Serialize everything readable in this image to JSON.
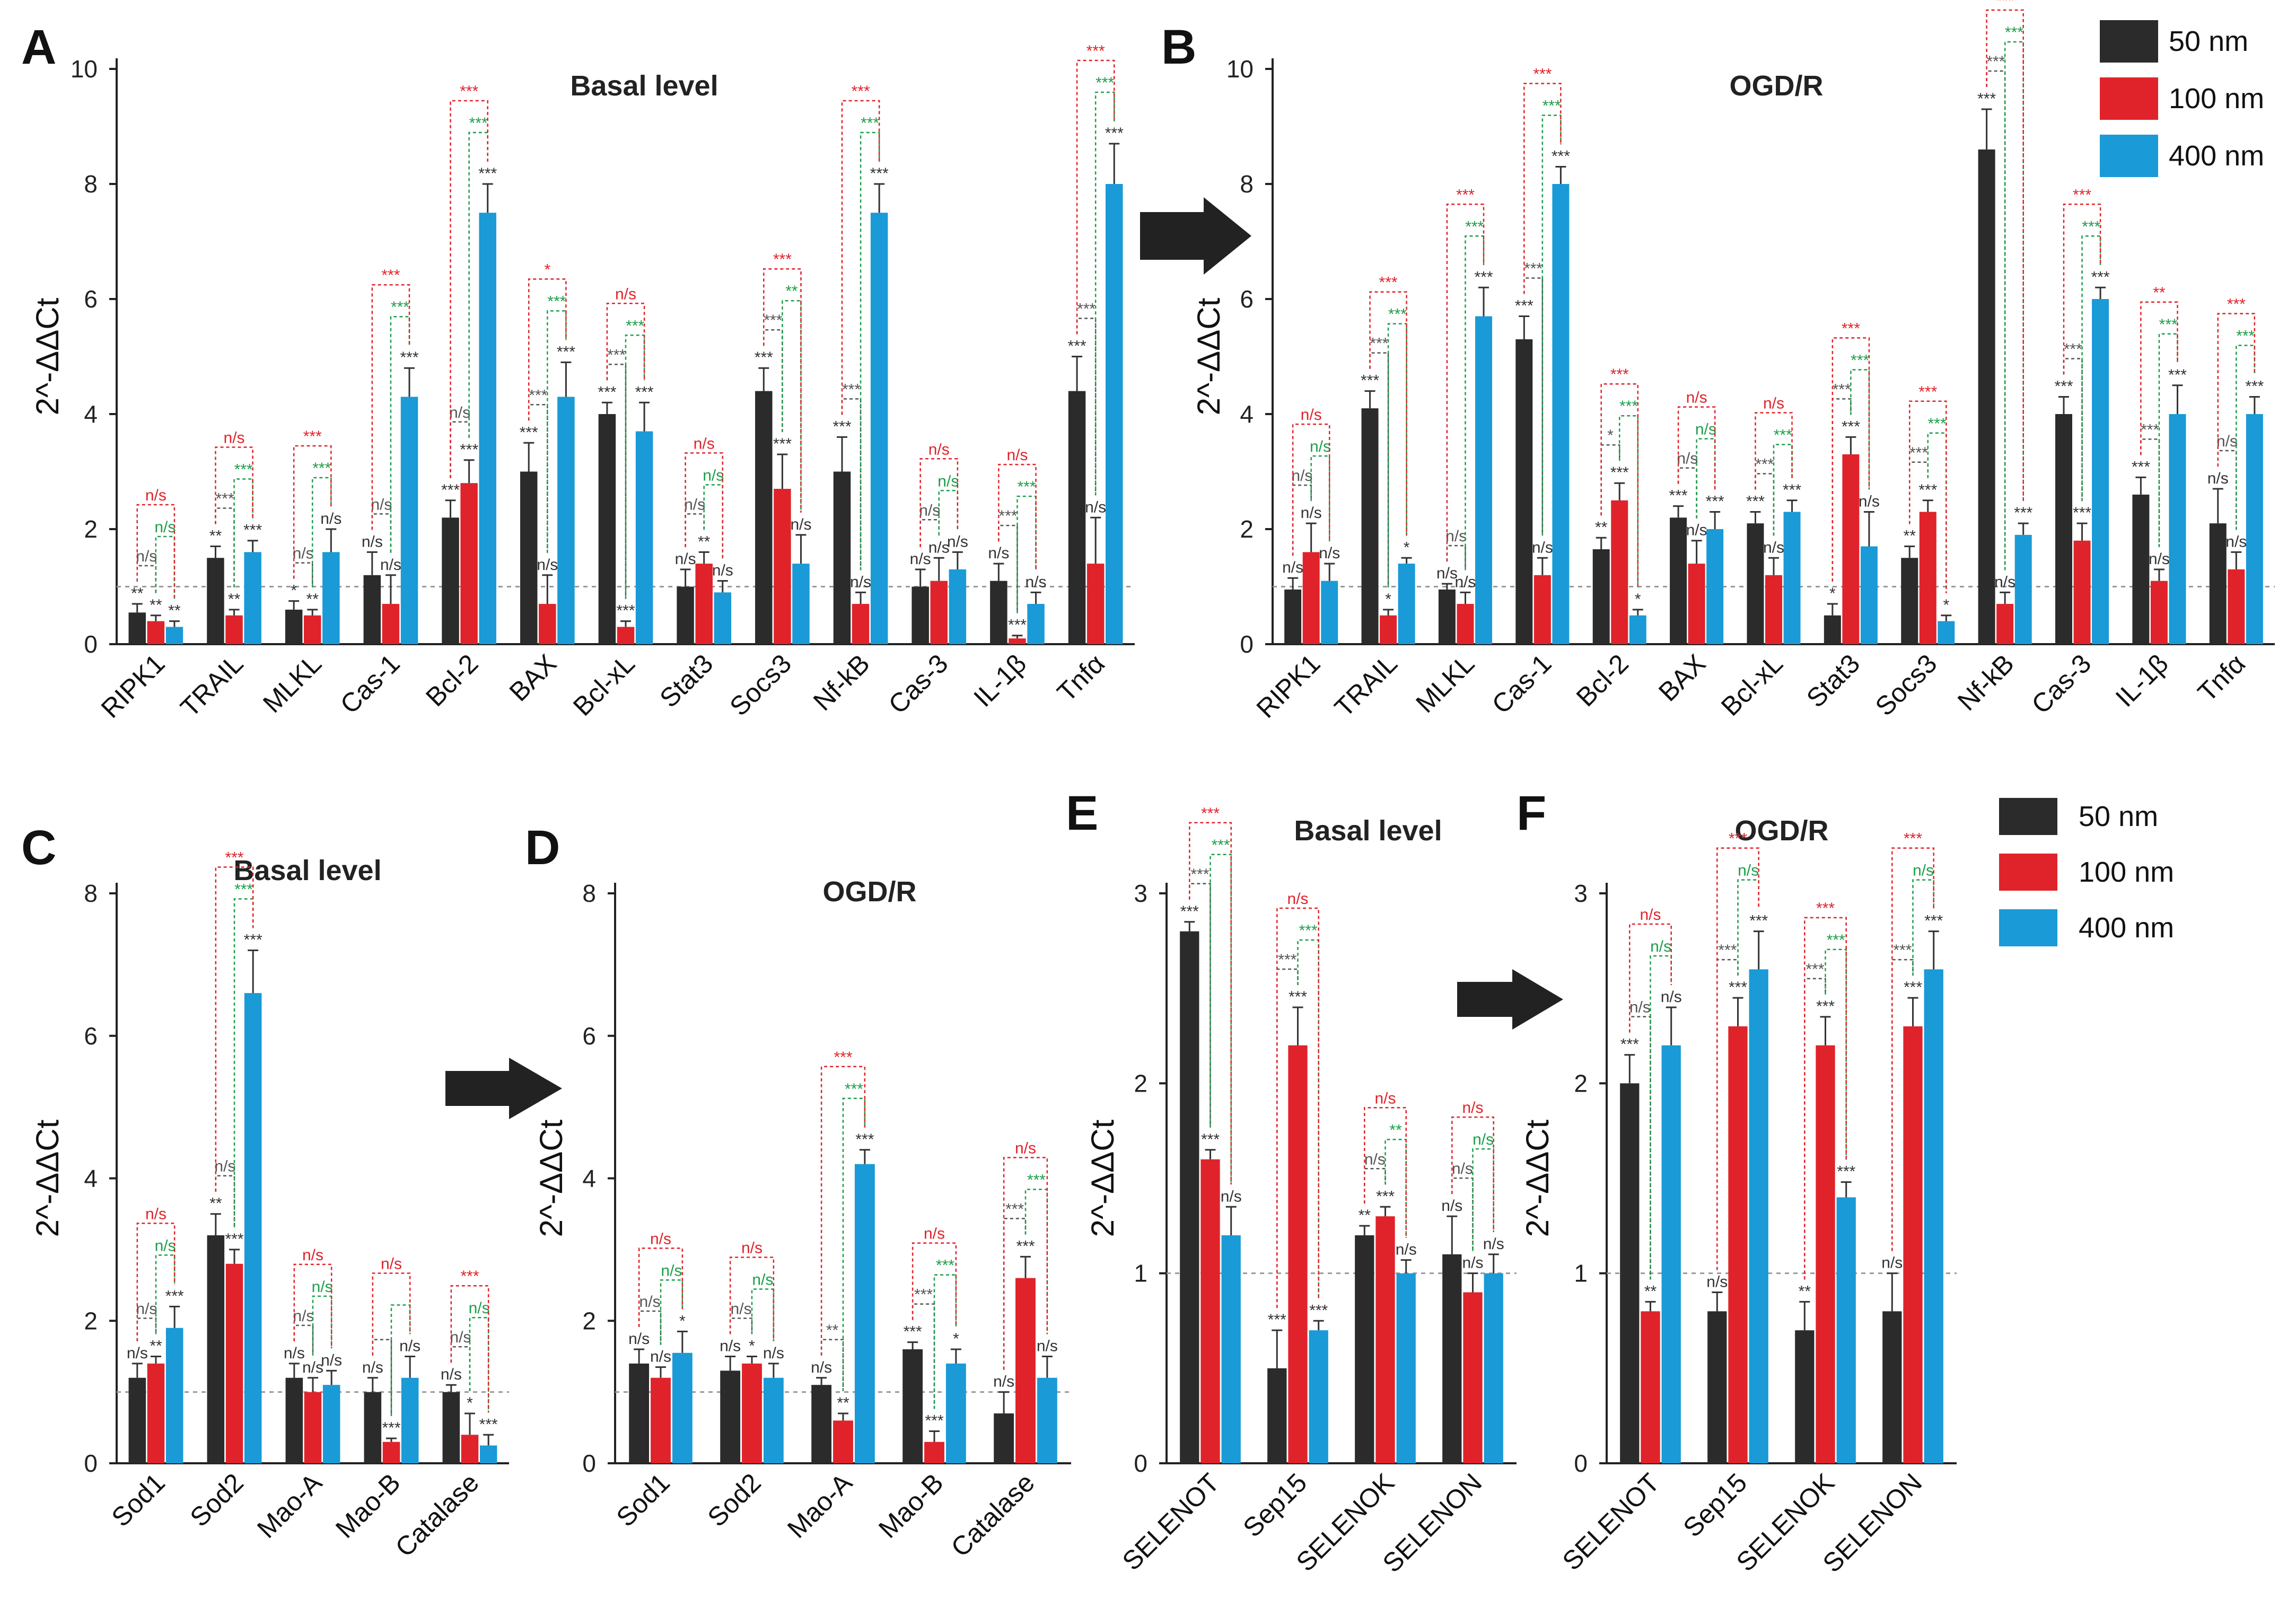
{
  "figure": {
    "y_label": "2^-ΔΔCt",
    "legend": [
      {
        "label": "50 nm",
        "color": "#2b2b2b"
      },
      {
        "label": "100 nm",
        "color": "#e0232a"
      },
      {
        "label": "400 nm",
        "color": "#1a9ad6"
      }
    ],
    "bracket_colors": {
      "k": "#555555",
      "r": "#e0232a",
      "g": "#1e9e4a"
    }
  },
  "chart_data": [
    {
      "panel": "A",
      "type": "bar",
      "title": "Basal level",
      "ylim": [
        0,
        10
      ],
      "yticks": [
        0,
        2,
        4,
        6,
        8,
        10
      ],
      "reference_line": 1,
      "categories": [
        "RIPK1",
        "TRAIL",
        "MLKL",
        "Cas-1",
        "Bcl-2",
        "BAX",
        "Bcl-xL",
        "Stat3",
        "Socs3",
        "Nf-kB",
        "Cas-3",
        "IL-1β",
        "Tnfα"
      ],
      "series": [
        {
          "name": "50 nm",
          "values": [
            0.55,
            1.5,
            0.6,
            1.2,
            2.2,
            3.0,
            4.0,
            1.0,
            4.4,
            3.0,
            1.0,
            1.1,
            4.4
          ]
        },
        {
          "name": "100 nm",
          "values": [
            0.4,
            0.5,
            0.5,
            0.7,
            2.8,
            0.7,
            0.3,
            1.4,
            2.7,
            0.7,
            1.1,
            0.1,
            1.4
          ]
        },
        {
          "name": "400 nm",
          "values": [
            0.3,
            1.6,
            1.6,
            4.3,
            7.5,
            4.3,
            3.7,
            0.9,
            1.4,
            7.5,
            1.3,
            0.7,
            8.0
          ]
        }
      ],
      "errors": [
        [
          0.15,
          0.2,
          0.15,
          0.4,
          0.3,
          0.5,
          0.2,
          0.3,
          0.4,
          0.6,
          0.3,
          0.3,
          0.6
        ],
        [
          0.1,
          0.1,
          0.1,
          0.5,
          0.4,
          0.5,
          0.1,
          0.2,
          0.6,
          0.2,
          0.4,
          0.05,
          0.8
        ],
        [
          0.1,
          0.2,
          0.4,
          0.5,
          0.5,
          0.6,
          0.5,
          0.2,
          0.5,
          0.5,
          0.3,
          0.2,
          0.7
        ]
      ],
      "bar_labels": [
        [
          "**",
          "**",
          "*",
          "n/s",
          "***",
          "***",
          "***",
          "n/s",
          "***",
          "***",
          "n/s",
          "n/s",
          "***"
        ],
        [
          "**",
          "**",
          "**",
          "n/s",
          "***",
          "n/s",
          "***",
          "**",
          "***",
          "n/s",
          "n/s",
          "***",
          "n/s"
        ],
        [
          "**",
          "***",
          "n/s",
          "***",
          "***",
          "***",
          "***",
          "n/s",
          "n/s",
          "***",
          "n/s",
          "n/s",
          "***"
        ]
      ],
      "brackets": {
        "k": [
          "n/s",
          "***",
          "n/s",
          "n/s",
          "n/s",
          "***",
          "***",
          "n/s",
          "***",
          "***",
          "n/s",
          "***",
          "***"
        ],
        "g": [
          "n/s",
          "***",
          "***",
          "***",
          "***",
          "***",
          "***",
          "n/s",
          "**",
          "***",
          "n/s",
          "***",
          "***"
        ],
        "r": [
          "n/s",
          "n/s",
          "***",
          "***",
          "***",
          "*",
          "n/s",
          "n/s",
          "***",
          "***",
          "n/s",
          "n/s",
          "***"
        ]
      }
    },
    {
      "panel": "B",
      "type": "bar",
      "title": "OGD/R",
      "ylim": [
        0,
        10
      ],
      "yticks": [
        0,
        2,
        4,
        6,
        8,
        10
      ],
      "reference_line": 1,
      "categories": [
        "RIPK1",
        "TRAIL",
        "MLKL",
        "Cas-1",
        "Bcl-2",
        "BAX",
        "Bcl-xL",
        "Stat3",
        "Socs3",
        "Nf-kB",
        "Cas-3",
        "IL-1β",
        "Tnfα"
      ],
      "series": [
        {
          "name": "50 nm",
          "values": [
            0.95,
            4.1,
            0.95,
            5.3,
            1.65,
            2.2,
            2.1,
            0.5,
            1.5,
            8.6,
            4.0,
            2.6,
            2.1
          ]
        },
        {
          "name": "100 nm",
          "values": [
            1.6,
            0.5,
            0.7,
            1.2,
            2.5,
            1.4,
            1.2,
            3.3,
            2.3,
            0.7,
            1.8,
            1.1,
            1.3
          ]
        },
        {
          "name": "400 nm",
          "values": [
            1.1,
            1.4,
            5.7,
            8.0,
            0.5,
            2.0,
            2.3,
            1.7,
            0.4,
            1.9,
            6.0,
            4.0,
            4.0
          ]
        }
      ],
      "errors": [
        [
          0.2,
          0.3,
          0.1,
          0.4,
          0.2,
          0.2,
          0.2,
          0.2,
          0.2,
          0.7,
          0.3,
          0.3,
          0.6
        ],
        [
          0.5,
          0.1,
          0.2,
          0.3,
          0.3,
          0.4,
          0.3,
          0.3,
          0.2,
          0.2,
          0.3,
          0.2,
          0.3
        ],
        [
          0.3,
          0.1,
          0.5,
          0.3,
          0.1,
          0.3,
          0.2,
          0.6,
          0.1,
          0.2,
          0.2,
          0.5,
          0.3
        ]
      ],
      "bar_labels": [
        [
          "n/s",
          "***",
          "n/s",
          "***",
          "**",
          "***",
          "***",
          "*",
          "**",
          "***",
          "***",
          "***",
          "n/s"
        ],
        [
          "n/s",
          "*",
          "n/s",
          "n/s",
          "***",
          "n/s",
          "n/s",
          "***",
          "***",
          "n/s",
          "***",
          "n/s",
          "n/s"
        ],
        [
          "n/s",
          "*",
          "***",
          "***",
          "*",
          "***",
          "***",
          "n/s",
          "*",
          "***",
          "***",
          "***",
          "***"
        ]
      ],
      "brackets": {
        "k": [
          "n/s",
          "***",
          "n/s",
          "***",
          "*",
          "n/s",
          "***",
          "***",
          "***",
          "***",
          "***",
          "***",
          "n/s"
        ],
        "g": [
          "n/s",
          "***",
          "***",
          "***",
          "***",
          "n/s",
          "***",
          "***",
          "***",
          "***",
          "***",
          "***",
          "***"
        ],
        "r": [
          "n/s",
          "***",
          "***",
          "***",
          "***",
          "n/s",
          "n/s",
          "***",
          "***",
          "***",
          "***",
          "**",
          "***"
        ]
      }
    },
    {
      "panel": "C",
      "type": "bar",
      "title": "Basal level",
      "ylim": [
        0,
        8
      ],
      "yticks": [
        0,
        2,
        4,
        6,
        8
      ],
      "reference_line": 1,
      "categories": [
        "Sod1",
        "Sod2",
        "Mao-A",
        "Mao-B",
        "Catalase"
      ],
      "series": [
        {
          "name": "50 nm",
          "values": [
            1.2,
            3.2,
            1.2,
            1.0,
            1.0
          ]
        },
        {
          "name": "100 nm",
          "values": [
            1.4,
            2.8,
            1.0,
            0.3,
            0.4
          ]
        },
        {
          "name": "400 nm",
          "values": [
            1.9,
            6.6,
            1.1,
            1.2,
            0.25
          ]
        }
      ],
      "errors": [
        [
          0.2,
          0.3,
          0.2,
          0.2,
          0.1
        ],
        [
          0.1,
          0.2,
          0.2,
          0.05,
          0.3
        ],
        [
          0.3,
          0.6,
          0.2,
          0.3,
          0.15
        ]
      ],
      "bar_labels": [
        [
          "n/s",
          "**",
          "n/s",
          "n/s",
          "n/s"
        ],
        [
          "**",
          "***",
          "n/s",
          "***",
          "*"
        ],
        [
          "***",
          "***",
          "n/s",
          "n/s",
          "***"
        ]
      ],
      "brackets": {
        "k": [
          "n/s",
          "n/s",
          "n/s",
          "",
          "n/s"
        ],
        "g": [
          "n/s",
          "***",
          "n/s",
          "",
          "n/s"
        ],
        "r": [
          "n/s",
          "***",
          "n/s",
          "n/s",
          "***"
        ]
      }
    },
    {
      "panel": "D",
      "type": "bar",
      "title": "OGD/R",
      "ylim": [
        0,
        8
      ],
      "yticks": [
        0,
        2,
        4,
        6,
        8
      ],
      "reference_line": 1,
      "categories": [
        "Sod1",
        "Sod2",
        "Mao-A",
        "Mao-B",
        "Catalase"
      ],
      "series": [
        {
          "name": "50 nm",
          "values": [
            1.4,
            1.3,
            1.1,
            1.6,
            0.7
          ]
        },
        {
          "name": "100 nm",
          "values": [
            1.2,
            1.4,
            0.6,
            0.3,
            2.6
          ]
        },
        {
          "name": "400 nm",
          "values": [
            1.55,
            1.2,
            4.2,
            1.4,
            1.2
          ]
        }
      ],
      "errors": [
        [
          0.2,
          0.2,
          0.1,
          0.1,
          0.3
        ],
        [
          0.15,
          0.1,
          0.1,
          0.15,
          0.3
        ],
        [
          0.3,
          0.2,
          0.2,
          0.2,
          0.3
        ]
      ],
      "bar_labels": [
        [
          "n/s",
          "n/s",
          "n/s",
          "***",
          "n/s"
        ],
        [
          "n/s",
          "*",
          "**",
          "***",
          "***"
        ],
        [
          "*",
          "n/s",
          "***",
          "*",
          "n/s"
        ]
      ],
      "brackets": {
        "k": [
          "n/s",
          "n/s",
          "**",
          "***",
          "***"
        ],
        "g": [
          "n/s",
          "n/s",
          "***",
          "***",
          "***"
        ],
        "r": [
          "n/s",
          "n/s",
          "***",
          "n/s",
          "n/s"
        ]
      }
    },
    {
      "panel": "E",
      "type": "bar",
      "title": "Basal level",
      "ylim": [
        0,
        3
      ],
      "yticks": [
        0,
        1,
        2,
        3
      ],
      "reference_line": 1,
      "categories": [
        "SELENOT",
        "Sep15",
        "SELENOK",
        "SELENON"
      ],
      "series": [
        {
          "name": "50 nm",
          "values": [
            2.8,
            0.5,
            1.2,
            1.1
          ]
        },
        {
          "name": "100 nm",
          "values": [
            1.6,
            2.2,
            1.3,
            0.9
          ]
        },
        {
          "name": "400 nm",
          "values": [
            1.2,
            0.7,
            1.0,
            1.0
          ]
        }
      ],
      "errors": [
        [
          0.05,
          0.2,
          0.05,
          0.2
        ],
        [
          0.05,
          0.2,
          0.05,
          0.1
        ],
        [
          0.15,
          0.05,
          0.07,
          0.1
        ]
      ],
      "bar_labels": [
        [
          "***",
          "***",
          "**",
          "n/s"
        ],
        [
          "***",
          "***",
          "***",
          "n/s"
        ],
        [
          "n/s",
          "***",
          "n/s",
          "n/s"
        ]
      ],
      "brackets": {
        "k": [
          "***",
          "***",
          "n/s",
          "n/s"
        ],
        "g": [
          "***",
          "***",
          "**",
          "n/s"
        ],
        "r": [
          "***",
          "n/s",
          "n/s",
          "n/s"
        ]
      }
    },
    {
      "panel": "F",
      "type": "bar",
      "title": "OGD/R",
      "ylim": [
        0,
        3
      ],
      "yticks": [
        0,
        1,
        2,
        3
      ],
      "reference_line": 1,
      "categories": [
        "SELENOT",
        "Sep15",
        "SELENOK",
        "SELENON"
      ],
      "series": [
        {
          "name": "50 nm",
          "values": [
            2.0,
            0.8,
            0.7,
            0.8
          ]
        },
        {
          "name": "100 nm",
          "values": [
            0.8,
            2.3,
            2.2,
            2.3
          ]
        },
        {
          "name": "400 nm",
          "values": [
            2.2,
            2.6,
            1.4,
            2.6
          ]
        }
      ],
      "errors": [
        [
          0.15,
          0.1,
          0.15,
          0.2
        ],
        [
          0.05,
          0.15,
          0.15,
          0.15
        ],
        [
          0.2,
          0.2,
          0.08,
          0.2
        ]
      ],
      "bar_labels": [
        [
          "***",
          "n/s",
          "**",
          "n/s"
        ],
        [
          "**",
          "***",
          "***",
          "***"
        ],
        [
          "n/s",
          "***",
          "***",
          "***"
        ]
      ],
      "brackets": {
        "k": [
          "n/s",
          "***",
          "***",
          "***"
        ],
        "g": [
          "n/s",
          "n/s",
          "***",
          "n/s"
        ],
        "r": [
          "n/s",
          "***",
          "***",
          "***"
        ]
      }
    }
  ]
}
